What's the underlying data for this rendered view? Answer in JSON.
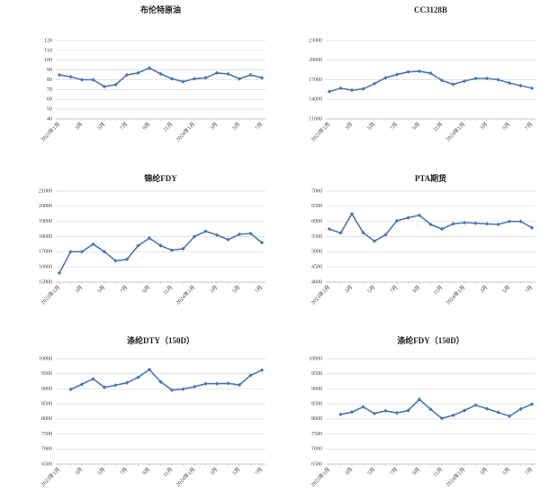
{
  "chart_data": [
    {
      "type": "line",
      "title": "布伦特原油",
      "color": "#4a78b5",
      "grid": true,
      "categories": [
        "2023年1月",
        null,
        "3月",
        null,
        "5月",
        null,
        "7月",
        null,
        "9月",
        null,
        "11月",
        null,
        "2024年1月",
        null,
        "3月",
        null,
        "5月",
        null,
        "7月"
      ],
      "values": [
        85,
        83,
        80,
        80,
        73,
        75,
        85,
        87,
        92,
        86,
        81,
        78,
        81,
        82,
        87,
        86,
        81,
        85,
        82
      ],
      "ylim": [
        40,
        120
      ],
      "yticks": [
        40,
        50,
        60,
        70,
        80,
        90,
        100,
        110,
        120
      ]
    },
    {
      "type": "line",
      "title": "CC3128B",
      "color": "#4a78b5",
      "grid": true,
      "categories": [
        "2023年1月",
        null,
        "3月",
        null,
        "5月",
        null,
        "7月",
        null,
        "9月",
        null,
        "11月",
        null,
        "2024年1月",
        null,
        "3月",
        null,
        "5月",
        null,
        "7月"
      ],
      "values": [
        15200,
        15700,
        15400,
        15600,
        16400,
        17300,
        17800,
        18200,
        18300,
        18000,
        16900,
        16300,
        16800,
        17200,
        17200,
        17000,
        16500,
        16100,
        15700
      ],
      "ylim": [
        11000,
        23000
      ],
      "yticks": [
        11000,
        14000,
        17000,
        20000,
        23000
      ]
    },
    {
      "type": "line",
      "title": "锦纶FDY",
      "color": "#4a78b5",
      "grid": true,
      "categories": [
        "2023年1月",
        null,
        "3月",
        null,
        "5月",
        null,
        "7月",
        null,
        "9月",
        null,
        "11月",
        null,
        "2024年1月",
        null,
        "3月",
        null,
        "5月",
        null,
        "7月"
      ],
      "values": [
        15600,
        17000,
        17000,
        17500,
        17000,
        16400,
        16500,
        17400,
        17900,
        17400,
        17100,
        17200,
        18000,
        18350,
        18100,
        17800,
        18150,
        18200,
        17600
      ],
      "ylim": [
        15000,
        21000
      ],
      "yticks": [
        15000,
        16000,
        17000,
        18000,
        19000,
        20000,
        21000
      ]
    },
    {
      "type": "line",
      "title": "PTA期货",
      "color": "#4a78b5",
      "grid": true,
      "categories": [
        "2023年1月",
        null,
        "3月",
        null,
        "5月",
        null,
        "7月",
        null,
        "9月",
        null,
        "11月",
        null,
        "2024年1月",
        null,
        "3月",
        null,
        "5月",
        null,
        "7月"
      ],
      "values": [
        5750,
        5620,
        6250,
        5630,
        5350,
        5560,
        6020,
        6120,
        6200,
        5900,
        5750,
        5920,
        5960,
        5940,
        5920,
        5900,
        6000,
        6000,
        5790
      ],
      "ylim": [
        4000,
        7000
      ],
      "yticks": [
        4000,
        4500,
        5000,
        5500,
        6000,
        6500,
        7000
      ]
    },
    {
      "type": "line",
      "title": "涤纶DTY（150D）",
      "color": "#4a78b5",
      "grid": true,
      "categories": [
        "2023年1月",
        null,
        "3月",
        null,
        "5月",
        null,
        "7月",
        null,
        "9月",
        null,
        "11月",
        null,
        "2024年1月",
        null,
        "3月",
        null,
        "5月",
        null,
        "7月"
      ],
      "values": [
        null,
        8980,
        9150,
        9330,
        9050,
        9120,
        9200,
        9380,
        9640,
        9230,
        8960,
        8990,
        9070,
        9170,
        9170,
        9180,
        9130,
        9450,
        9620
      ],
      "ylim": [
        6500,
        10000
      ],
      "yticks": [
        6500,
        7000,
        7500,
        8000,
        8500,
        9000,
        9500,
        10000
      ]
    },
    {
      "type": "line",
      "title": "涤纶FDY（150D）",
      "color": "#4a78b5",
      "grid": true,
      "categories": [
        "2023年1月",
        null,
        "3月",
        null,
        "5月",
        null,
        "7月",
        null,
        "9月",
        null,
        "11月",
        null,
        "2024年1月",
        null,
        "3月",
        null,
        "5月",
        null,
        "7月"
      ],
      "values": [
        null,
        8150,
        8230,
        8400,
        8180,
        8270,
        8200,
        8280,
        8650,
        8320,
        8020,
        8120,
        8280,
        8460,
        8340,
        8220,
        8090,
        8330,
        8490
      ],
      "ylim": [
        6500,
        10000
      ],
      "yticks": [
        6500,
        7000,
        7500,
        8000,
        8500,
        9000,
        9500,
        10000
      ]
    }
  ]
}
